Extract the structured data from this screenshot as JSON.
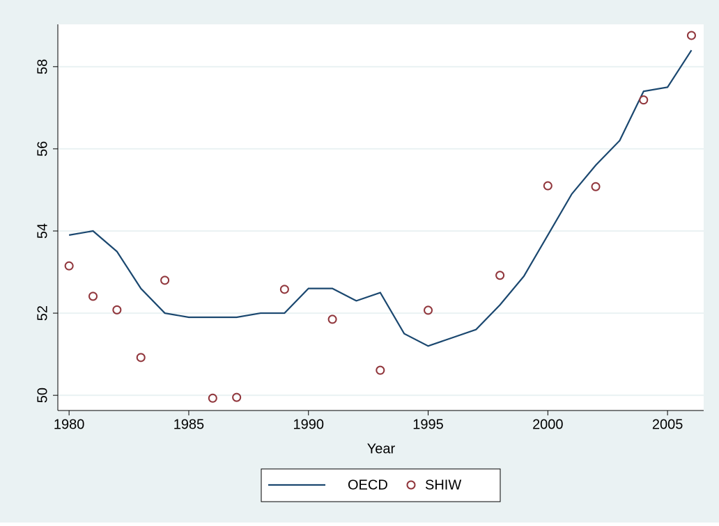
{
  "chart_data": {
    "type": "line",
    "x_label": "Year",
    "x": [
      1980,
      1981,
      1982,
      1983,
      1984,
      1985,
      1986,
      1987,
      1988,
      1989,
      1990,
      1991,
      1992,
      1993,
      1994,
      1995,
      1996,
      1997,
      1998,
      1999,
      2000,
      2001,
      2002,
      2003,
      2004,
      2005,
      2006
    ],
    "series": [
      {
        "name": "OECD",
        "color": "#1a476f",
        "style": "line",
        "values": [
          53.9,
          54.0,
          53.5,
          52.6,
          52.0,
          51.9,
          51.9,
          51.9,
          52.0,
          52.0,
          52.6,
          52.6,
          52.3,
          52.5,
          51.5,
          51.2,
          51.4,
          51.6,
          52.2,
          52.9,
          53.9,
          54.9,
          55.6,
          56.2,
          57.4,
          57.5,
          58.4
        ]
      },
      {
        "name": "SHIW",
        "color": "#90353b",
        "style": "marker",
        "values": [
          53.15,
          52.41,
          52.08,
          50.92,
          52.8,
          null,
          49.93,
          49.95,
          null,
          52.58,
          null,
          51.85,
          null,
          50.61,
          null,
          52.07,
          null,
          null,
          52.92,
          null,
          55.1,
          null,
          55.08,
          null,
          57.19,
          null,
          58.76
        ]
      }
    ],
    "xlim": [
      1979.53,
      2006.51
    ],
    "xticks": [
      1980,
      1985,
      1990,
      1995,
      2000,
      2005
    ],
    "ylim": [
      49.63,
      59.03
    ],
    "yticks": [
      50,
      52,
      54,
      56,
      58
    ],
    "grid": true,
    "legend": "bottom"
  }
}
